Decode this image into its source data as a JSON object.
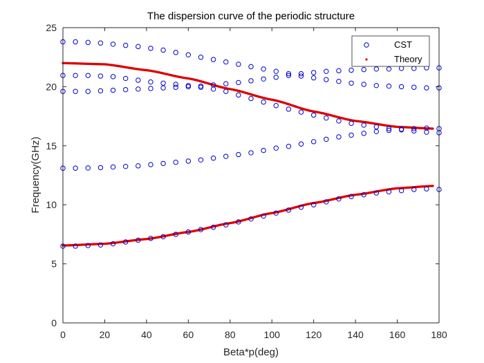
{
  "chart_data": {
    "type": "scatter",
    "title": "The dispersion curve of the periodic structure",
    "xlabel": "Beta*p(deg)",
    "ylabel": "Frequency(GHz)",
    "xlim": [
      0,
      180
    ],
    "ylim": [
      0,
      25
    ],
    "xticks": [
      "0",
      "20",
      "40",
      "60",
      "80",
      "100",
      "120",
      "140",
      "160",
      "180"
    ],
    "yticks": [
      "0",
      "5",
      "10",
      "15",
      "20",
      "25"
    ],
    "grid": false,
    "legend_position": "top-right",
    "colors": {
      "cst": "#0000cc",
      "theory": "#dd0000",
      "axes": "#262626"
    },
    "series": [
      {
        "name": "CST",
        "marker": "open-circle",
        "x": [
          0,
          6,
          12,
          18,
          24,
          30,
          36,
          42,
          48,
          54,
          60,
          66,
          72,
          78,
          84,
          90,
          96,
          102,
          108,
          114,
          120,
          126,
          132,
          138,
          144,
          150,
          156,
          162,
          168,
          174,
          180
        ],
        "bands": [
          [
            6.5,
            6.5,
            6.55,
            6.6,
            6.7,
            6.85,
            7.0,
            7.15,
            7.3,
            7.5,
            7.7,
            7.9,
            8.1,
            8.3,
            8.55,
            8.8,
            9.05,
            9.3,
            9.55,
            9.8,
            10.0,
            10.25,
            10.5,
            10.7,
            10.85,
            11.0,
            11.1,
            11.2,
            11.3,
            11.35,
            11.3
          ],
          [
            13.1,
            13.1,
            13.12,
            13.15,
            13.2,
            13.25,
            13.3,
            13.4,
            13.5,
            13.6,
            13.7,
            13.8,
            13.95,
            14.1,
            14.25,
            14.4,
            14.6,
            14.8,
            14.95,
            15.15,
            15.35,
            15.55,
            15.75,
            15.9,
            16.05,
            16.2,
            16.3,
            16.4,
            16.45,
            16.5,
            16.45
          ],
          [
            19.6,
            19.6,
            19.6,
            19.65,
            19.7,
            19.75,
            19.8,
            19.85,
            19.9,
            19.95,
            20.0,
            20.05,
            20.15,
            20.25,
            20.35,
            20.5,
            20.65,
            20.8,
            20.95,
            21.1,
            21.2,
            21.3,
            21.35,
            21.4,
            21.45,
            21.5,
            21.5,
            21.55,
            21.55,
            21.6,
            21.6
          ],
          [
            20.95,
            20.95,
            20.95,
            20.9,
            20.85,
            20.7,
            20.55,
            20.4,
            20.3,
            20.2,
            20.1,
            19.95,
            19.8,
            19.6,
            19.3,
            19.0,
            18.7,
            18.4,
            18.1,
            17.85,
            17.6,
            17.35,
            17.1,
            16.9,
            16.75,
            16.6,
            16.45,
            16.35,
            16.25,
            16.15,
            16.1
          ],
          [
            23.8,
            23.8,
            23.75,
            23.7,
            23.6,
            23.5,
            23.4,
            23.25,
            23.1,
            22.9,
            22.7,
            22.5,
            22.3,
            22.1,
            21.9,
            21.7,
            21.5,
            21.3,
            21.1,
            20.9,
            20.75,
            20.6,
            20.45,
            20.3,
            20.2,
            20.1,
            20.05,
            20.0,
            19.95,
            19.9,
            19.9
          ]
        ]
      },
      {
        "name": "Theory",
        "marker": "dot",
        "x_range": [
          0,
          177
        ],
        "curves": [
          {
            "label": "lower-band",
            "x": [
              0,
              20,
              40,
              60,
              80,
              100,
              120,
              140,
              160,
              177
            ],
            "y": [
              6.55,
              6.7,
              7.1,
              7.7,
              8.45,
              9.3,
              10.15,
              10.85,
              11.4,
              11.6
            ]
          },
          {
            "label": "upper-band",
            "x": [
              0,
              20,
              40,
              60,
              80,
              100,
              120,
              140,
              160,
              177
            ],
            "y": [
              22.0,
              21.9,
              21.4,
              20.7,
              19.8,
              18.9,
              17.9,
              17.1,
              16.6,
              16.45
            ]
          }
        ]
      }
    ]
  }
}
